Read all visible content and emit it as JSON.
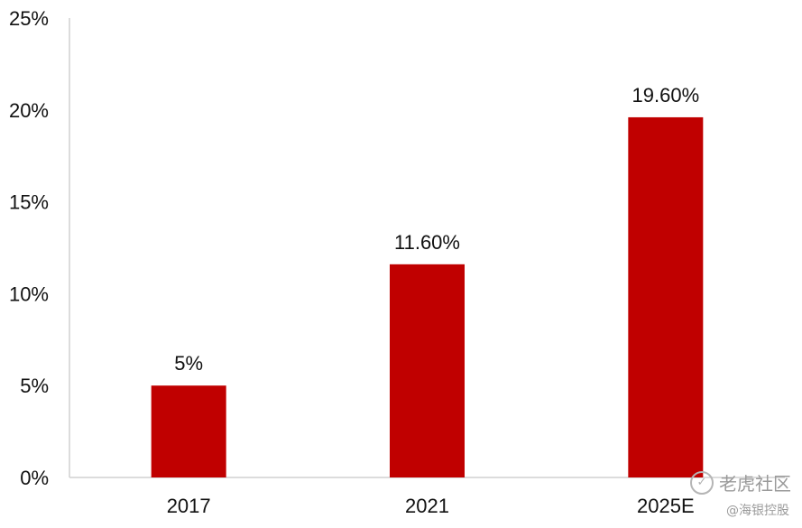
{
  "chart_data": {
    "type": "bar",
    "categories": [
      "2017",
      "2021",
      "2025E"
    ],
    "values": [
      5,
      11.6,
      19.6
    ],
    "data_labels": [
      "5%",
      "11.60%",
      "19.60%"
    ],
    "ylim": [
      0,
      25
    ],
    "yticks": [
      0,
      5,
      10,
      15,
      20,
      25
    ],
    "ytick_labels": [
      "0%",
      "5%",
      "10%",
      "15%",
      "20%",
      "25%"
    ],
    "title": "",
    "xlabel": "",
    "ylabel": "",
    "grid": false,
    "legend": "none",
    "bar_color": "#C00000"
  },
  "watermark": {
    "main": "老虎社区",
    "sub": "@海银控股"
  }
}
